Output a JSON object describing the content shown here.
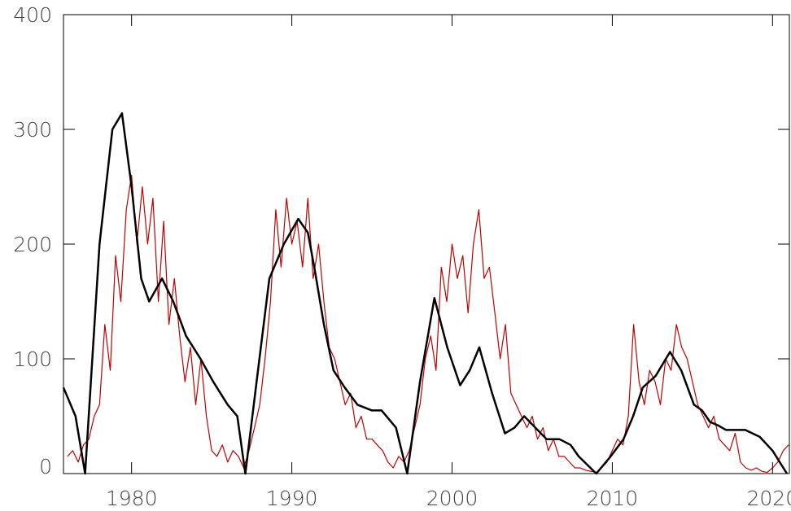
{
  "chart_data": {
    "type": "line",
    "xlim": [
      1975.75,
      2021.05
    ],
    "ylim": [
      0,
      400
    ],
    "xticks": [
      1980,
      1990,
      2000,
      2010,
      2020
    ],
    "yticks": [
      0,
      100,
      200,
      300,
      400
    ],
    "series": [
      {
        "color": "#c00000",
        "x": [
          1976,
          1976.33,
          1976.67,
          1977,
          1977.33,
          1977.67,
          1978,
          1978.33,
          1978.67,
          1979,
          1979.33,
          1979.67,
          1980,
          1980.33,
          1980.67,
          1981,
          1981.33,
          1981.67,
          1982,
          1982.33,
          1982.67,
          1983,
          1983.33,
          1983.67,
          1984,
          1984.33,
          1984.67,
          1985,
          1985.33,
          1985.67,
          1986,
          1986.33,
          1986.67,
          1987,
          1987.33,
          1987.67,
          1988,
          1988.33,
          1988.67,
          1989,
          1989.33,
          1989.67,
          1990,
          1990.33,
          1990.67,
          1991,
          1991.33,
          1991.67,
          1992,
          1992.33,
          1992.67,
          1993,
          1993.33,
          1993.67,
          1994,
          1994.33,
          1994.67,
          1995,
          1995.33,
          1995.67,
          1996,
          1996.33,
          1996.67,
          1997,
          1997.33,
          1997.67,
          1998,
          1998.33,
          1998.67,
          1999,
          1999.33,
          1999.67,
          2000,
          2000.33,
          2000.67,
          2001,
          2001.33,
          2001.67,
          2002,
          2002.33,
          2002.67,
          2003,
          2003.33,
          2003.67,
          2004,
          2004.33,
          2004.67,
          2005,
          2005.33,
          2005.67,
          2006,
          2006.33,
          2006.67,
          2007,
          2007.33,
          2007.67,
          2008,
          2008.33,
          2008.67,
          2009,
          2009.33,
          2009.67,
          2010,
          2010.33,
          2010.67,
          2011,
          2011.33,
          2011.67,
          2012,
          2012.33,
          2012.67,
          2013,
          2013.33,
          2013.67,
          2014,
          2014.33,
          2014.67,
          2015,
          2015.33,
          2015.67,
          2016,
          2016.33,
          2016.67,
          2017,
          2017.33,
          2017.67,
          2018,
          2018.33,
          2018.67,
          2019,
          2019.33,
          2019.67,
          2020,
          2020.33,
          2020.67,
          2021
        ],
        "values": [
          15,
          20,
          10,
          25,
          30,
          50,
          60,
          130,
          90,
          190,
          150,
          230,
          260,
          200,
          250,
          200,
          240,
          150,
          220,
          130,
          170,
          120,
          80,
          110,
          60,
          100,
          50,
          20,
          15,
          25,
          10,
          20,
          15,
          5,
          20,
          40,
          60,
          100,
          150,
          230,
          180,
          240,
          200,
          220,
          180,
          240,
          170,
          200,
          150,
          110,
          100,
          80,
          60,
          70,
          40,
          50,
          30,
          30,
          25,
          20,
          10,
          5,
          15,
          10,
          20,
          40,
          60,
          100,
          120,
          90,
          180,
          150,
          200,
          170,
          190,
          140,
          200,
          230,
          170,
          180,
          140,
          100,
          130,
          70,
          60,
          50,
          40,
          50,
          30,
          40,
          20,
          30,
          15,
          15,
          10,
          5,
          5,
          3,
          2,
          1,
          5,
          10,
          20,
          30,
          25,
          50,
          130,
          80,
          60,
          90,
          80,
          60,
          100,
          90,
          130,
          110,
          100,
          80,
          60,
          50,
          40,
          50,
          30,
          25,
          20,
          35,
          10,
          5,
          3,
          5,
          2,
          1,
          5,
          10,
          20,
          25
        ]
      },
      {
        "color": "#000000",
        "x": [
          1975.75,
          1976.5,
          1977.1,
          1978.0,
          1978.8,
          1979.4,
          1980.0,
          1980.6,
          1981.1,
          1981.9,
          1982.6,
          1983.4,
          1984.3,
          1985.1,
          1986.0,
          1986.6,
          1987.1,
          1987.8,
          1988.6,
          1989.5,
          1990.4,
          1991.0,
          1991.4,
          1992.0,
          1992.6,
          1993.3,
          1994.1,
          1995.0,
          1995.6,
          1996.5,
          1997.2,
          1998.0,
          1998.9,
          1999.7,
          2000.5,
          2001.1,
          2001.7,
          2002.5,
          2003.3,
          2003.9,
          2004.5,
          2005.2,
          2005.9,
          2006.7,
          2007.4,
          2007.9,
          2009.0,
          2009.9,
          2010.7,
          2011.3,
          2011.9,
          2012.7,
          2013.6,
          2014.3,
          2015.1,
          2015.6,
          2016.1,
          2016.6,
          2017.1,
          2018.3,
          2019.2,
          2020.0,
          2020.9
        ],
        "values": [
          75,
          50,
          0,
          200,
          300,
          314,
          250,
          170,
          150,
          170,
          150,
          120,
          100,
          80,
          60,
          50,
          0,
          80,
          170,
          200,
          222,
          210,
          180,
          130,
          90,
          75,
          60,
          55,
          55,
          40,
          0,
          80,
          153,
          110,
          77,
          90,
          110,
          70,
          35,
          40,
          50,
          40,
          30,
          30,
          25,
          15,
          0,
          15,
          30,
          50,
          75,
          85,
          106,
          90,
          60,
          55,
          45,
          42,
          38,
          38,
          32,
          20,
          0
        ]
      }
    ]
  }
}
